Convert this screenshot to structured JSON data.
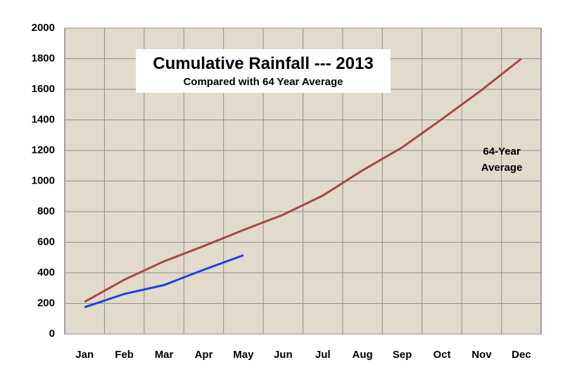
{
  "chart_data": {
    "type": "line",
    "title": "Cumulative Rainfall --- 2013",
    "subtitle": "Compared with 64 Year Average",
    "categories": [
      "Jan",
      "Feb",
      "Mar",
      "Apr",
      "May",
      "Jun",
      "Jul",
      "Aug",
      "Sep",
      "Oct",
      "Nov",
      "Dec"
    ],
    "series": [
      {
        "name": "64-Year Average",
        "color": "#a44a3f",
        "values": [
          210,
          355,
          475,
          575,
          680,
          780,
          905,
          1070,
          1220,
          1405,
          1595,
          1800
        ]
      },
      {
        "color": "#1f3fe0",
        "values": [
          175,
          262,
          320,
          420,
          515,
          null,
          null,
          null,
          null,
          null,
          null,
          null
        ]
      }
    ],
    "ylim": [
      0,
      2000
    ],
    "yticks": [
      0,
      200,
      400,
      600,
      800,
      1000,
      1200,
      1400,
      1600,
      1800,
      2000
    ],
    "grid": true
  }
}
